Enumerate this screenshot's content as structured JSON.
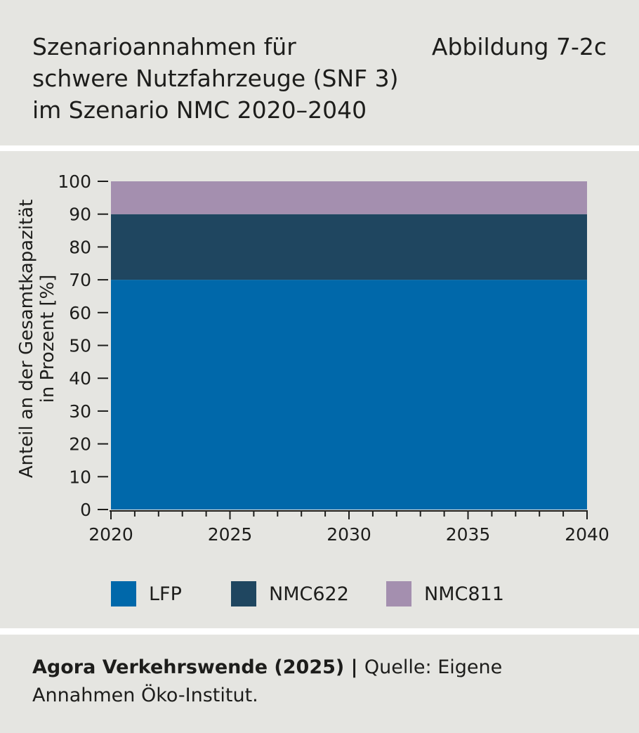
{
  "header": {
    "title": "Szenarioannahmen für\nschwere Nutzfahrzeuge (SNF 3)\nim Szenario NMC 2020–2040",
    "figure_number": "Abbildung 7-2c"
  },
  "footer": {
    "publisher": "Agora Verkehrswende (2025)",
    "separator": " | ",
    "source": "Quelle: Eigene Annahmen Öko-Institut."
  },
  "colors": {
    "LFP": "#0068aa",
    "NMC622": "#1f4660",
    "NMC811": "#a48faf",
    "background": "#e5e5e1"
  },
  "chart_data": {
    "type": "area",
    "stacked": true,
    "x": [
      2020,
      2040
    ],
    "series": [
      {
        "name": "LFP",
        "values": [
          70,
          70
        ]
      },
      {
        "name": "NMC622",
        "values": [
          20,
          20
        ]
      },
      {
        "name": "NMC811",
        "values": [
          10,
          10
        ]
      }
    ],
    "ylabel": "Anteil an der Gesamtkapazität\nin Prozent [%]",
    "xlabel": "",
    "ylim": [
      0,
      100
    ],
    "xlim": [
      2020,
      2040
    ],
    "y_ticks": [
      0,
      10,
      20,
      30,
      40,
      50,
      60,
      70,
      80,
      90,
      100
    ],
    "x_ticks": [
      2020,
      2025,
      2030,
      2035,
      2040
    ],
    "grid": false,
    "legend_position": "bottom"
  }
}
